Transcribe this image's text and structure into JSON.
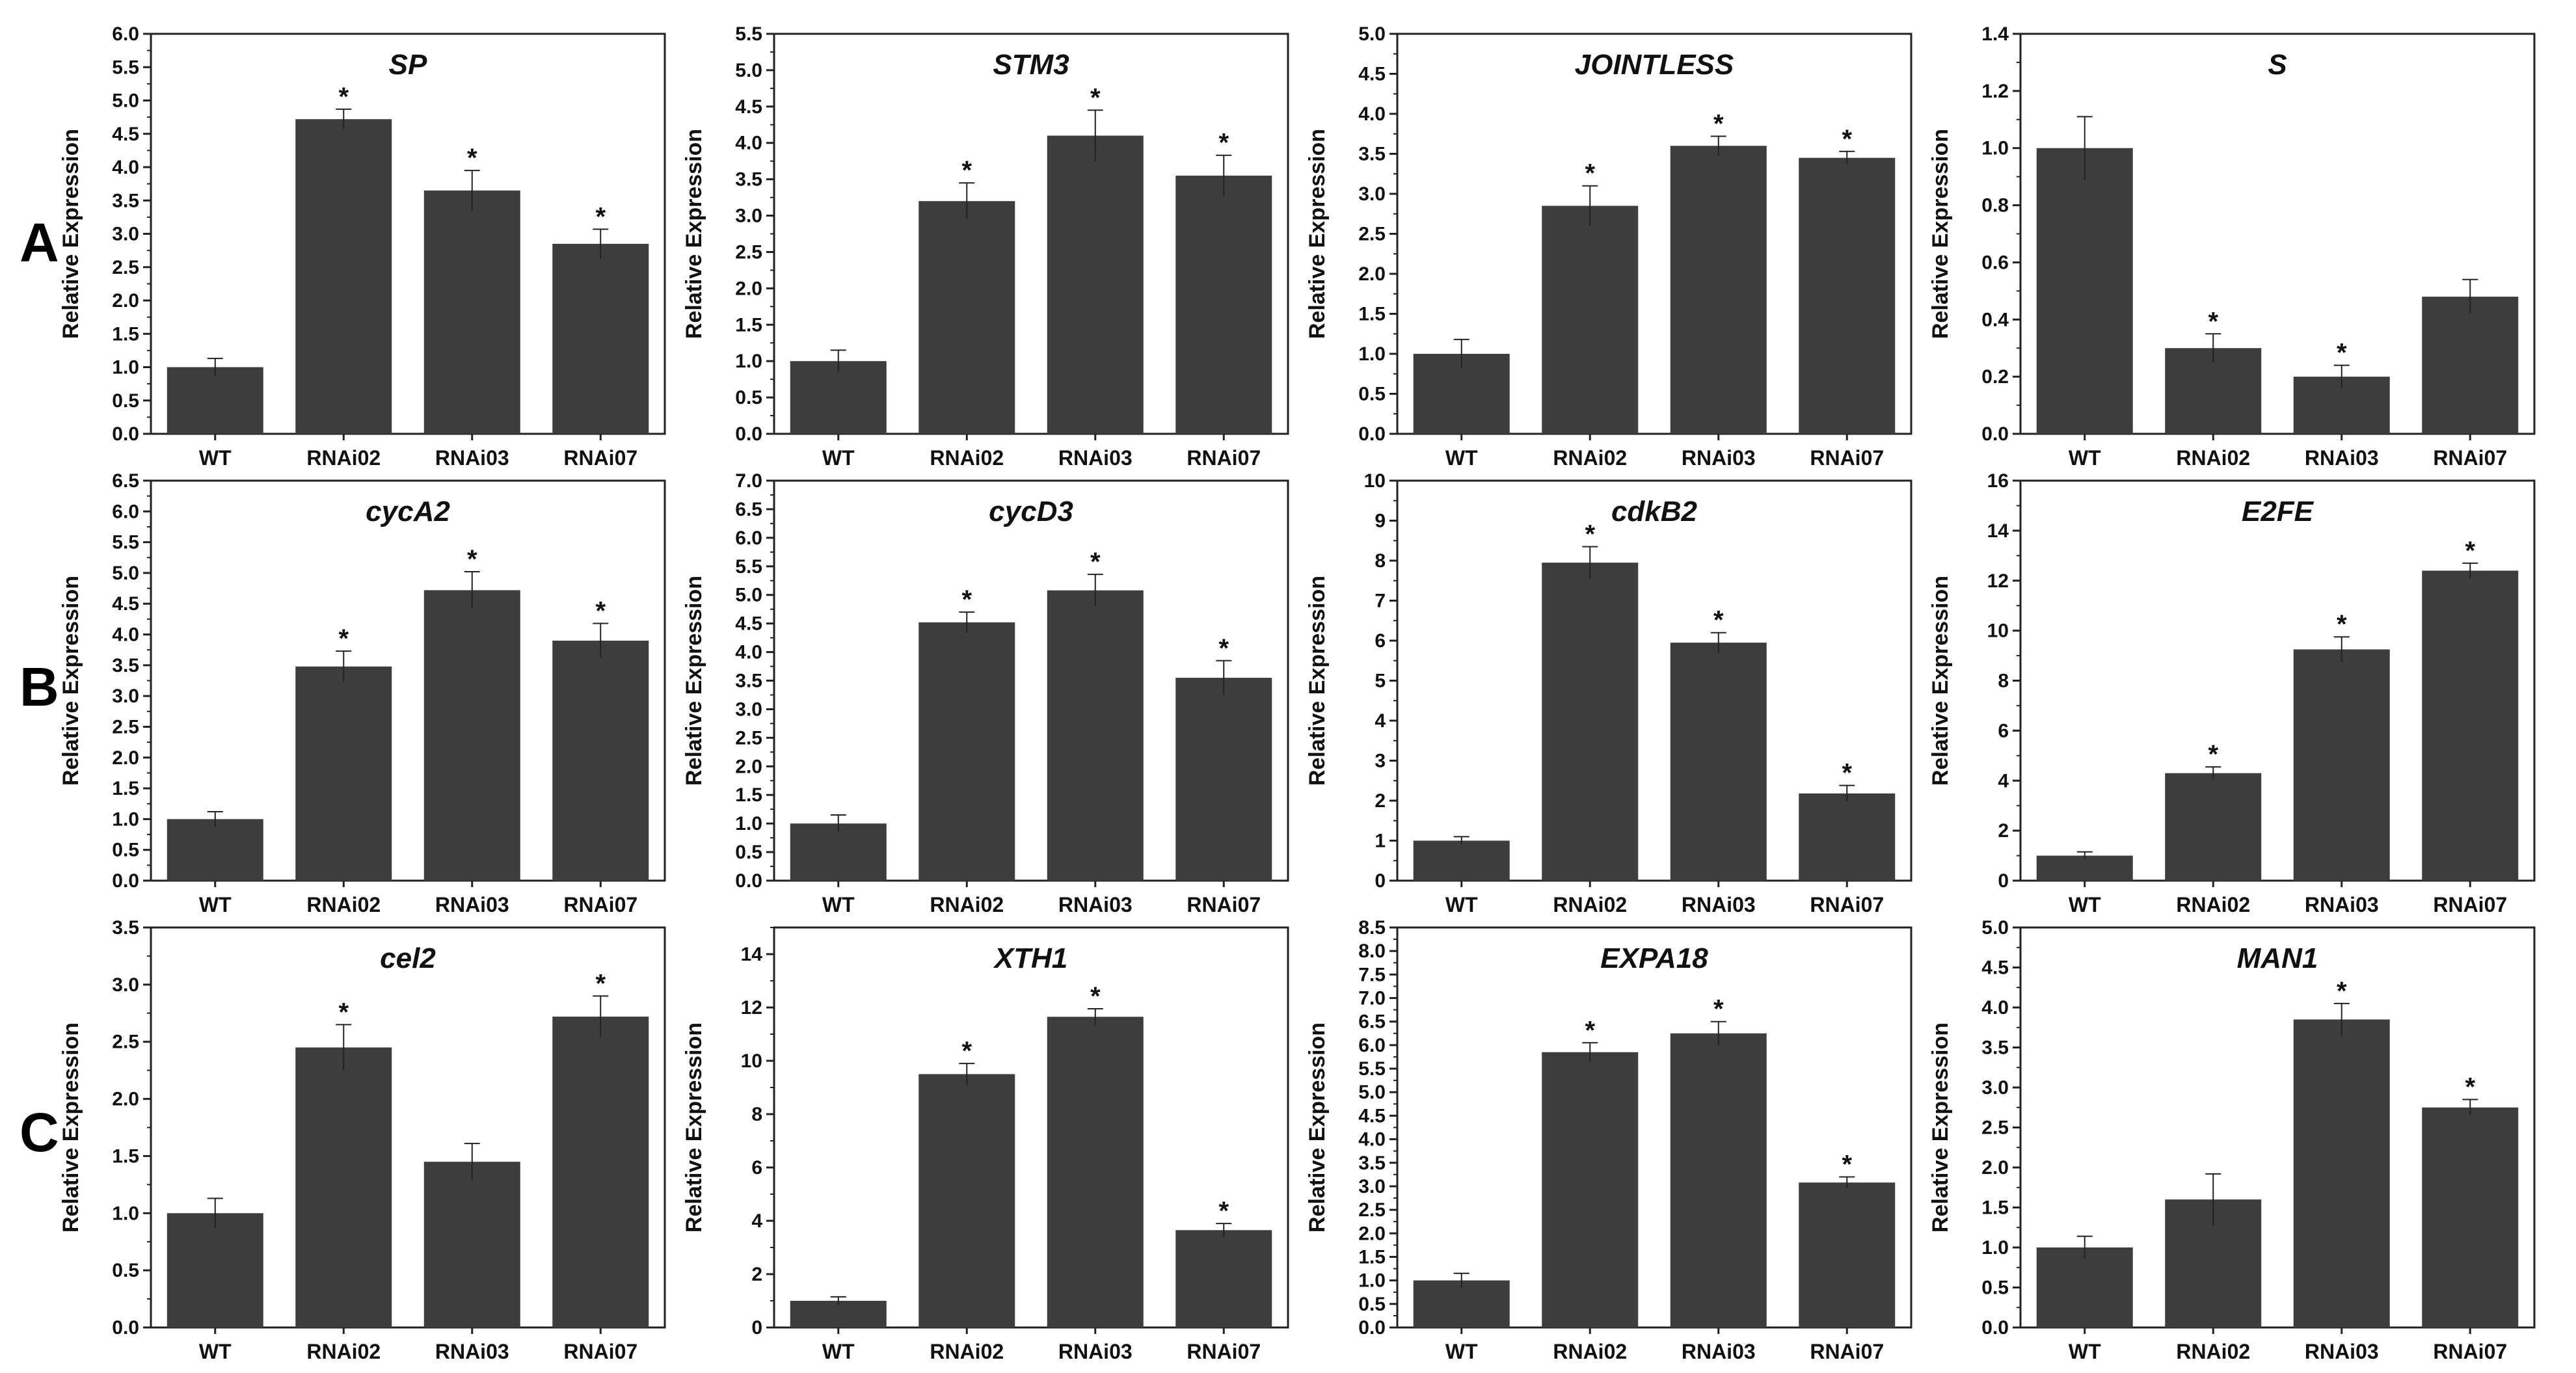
{
  "row_labels": [
    "A",
    "B",
    "C"
  ],
  "chart_data": [
    {
      "type": "bar",
      "title": "SP",
      "ylabel": "Relative Expression",
      "categories": [
        "WT",
        "RNAi02",
        "RNAi03",
        "RNAi07"
      ],
      "values": [
        1.0,
        4.72,
        3.65,
        2.85
      ],
      "errors": [
        0.13,
        0.15,
        0.3,
        0.22
      ],
      "significant": [
        false,
        true,
        true,
        true
      ],
      "ylim": [
        0,
        6
      ],
      "ytick_step": 0.5,
      "ytick_decimals": 1
    },
    {
      "type": "bar",
      "title": "STM3",
      "ylabel": "Relative Expression",
      "categories": [
        "WT",
        "RNAi02",
        "RNAi03",
        "RNAi07"
      ],
      "values": [
        1.0,
        3.2,
        4.1,
        3.55
      ],
      "errors": [
        0.15,
        0.25,
        0.35,
        0.28
      ],
      "significant": [
        false,
        true,
        true,
        true
      ],
      "ylim": [
        0,
        5.5
      ],
      "ytick_step": 0.5,
      "ytick_decimals": 1
    },
    {
      "type": "bar",
      "title": "JOINTLESS",
      "ylabel": "Relative Expression",
      "categories": [
        "WT",
        "RNAi02",
        "RNAi03",
        "RNAi07"
      ],
      "values": [
        1.0,
        2.85,
        3.6,
        3.45
      ],
      "errors": [
        0.18,
        0.25,
        0.12,
        0.08
      ],
      "significant": [
        false,
        true,
        true,
        true
      ],
      "ylim": [
        0,
        5
      ],
      "ytick_step": 0.5,
      "ytick_decimals": 1
    },
    {
      "type": "bar",
      "title": "S",
      "ylabel": "Relative Expression",
      "categories": [
        "WT",
        "RNAi02",
        "RNAi03",
        "RNAi07"
      ],
      "values": [
        1.0,
        0.3,
        0.2,
        0.48
      ],
      "errors": [
        0.11,
        0.05,
        0.04,
        0.06
      ],
      "significant": [
        false,
        true,
        true,
        false
      ],
      "ylim": [
        0,
        1.4
      ],
      "ytick_step": 0.2,
      "ytick_decimals": 1
    },
    {
      "type": "bar",
      "title": "cycA2",
      "ylabel": "Relative Expression",
      "categories": [
        "WT",
        "RNAi02",
        "RNAi03",
        "RNAi07"
      ],
      "values": [
        1.0,
        3.48,
        4.72,
        3.9
      ],
      "errors": [
        0.12,
        0.25,
        0.3,
        0.28
      ],
      "significant": [
        false,
        true,
        true,
        true
      ],
      "ylim": [
        0,
        6.5
      ],
      "ytick_step": 0.5,
      "ytick_decimals": 1
    },
    {
      "type": "bar",
      "title": "cycD3",
      "ylabel": "Relative Expression",
      "categories": [
        "WT",
        "RNAi02",
        "RNAi03",
        "RNAi07"
      ],
      "values": [
        1.0,
        4.52,
        5.08,
        3.55
      ],
      "errors": [
        0.15,
        0.18,
        0.28,
        0.3
      ],
      "significant": [
        false,
        true,
        true,
        true
      ],
      "ylim": [
        0,
        7
      ],
      "ytick_step": 0.5,
      "ytick_decimals": 1
    },
    {
      "type": "bar",
      "title": "cdkB2",
      "ylabel": "Relative Expression",
      "categories": [
        "WT",
        "RNAi02",
        "RNAi03",
        "RNAi07"
      ],
      "values": [
        1.0,
        7.95,
        5.95,
        2.18
      ],
      "errors": [
        0.1,
        0.4,
        0.25,
        0.2
      ],
      "significant": [
        false,
        true,
        true,
        true
      ],
      "ylim": [
        0,
        10
      ],
      "ytick_step": 1,
      "ytick_decimals": 0
    },
    {
      "type": "bar",
      "title": "E2FE",
      "ylabel": "Relative Expression",
      "categories": [
        "WT",
        "RNAi02",
        "RNAi03",
        "RNAi07"
      ],
      "values": [
        1.0,
        4.3,
        9.25,
        12.4
      ],
      "errors": [
        0.15,
        0.25,
        0.5,
        0.3
      ],
      "significant": [
        false,
        true,
        true,
        true
      ],
      "ylim": [
        0,
        16
      ],
      "ytick_step": 2,
      "ytick_decimals": 0
    },
    {
      "type": "bar",
      "title": "cel2",
      "ylabel": "Relative Expression",
      "categories": [
        "WT",
        "RNAi02",
        "RNAi03",
        "RNAi07"
      ],
      "values": [
        1.0,
        2.45,
        1.45,
        2.72
      ],
      "errors": [
        0.13,
        0.2,
        0.16,
        0.18
      ],
      "significant": [
        false,
        true,
        false,
        true
      ],
      "ylim": [
        0,
        3.5
      ],
      "ytick_step": 0.5,
      "ytick_decimals": 1
    },
    {
      "type": "bar",
      "title": "XTH1",
      "ylabel": "Relative Expression",
      "categories": [
        "WT",
        "RNAi02",
        "RNAi03",
        "RNAi07"
      ],
      "values": [
        1.0,
        9.5,
        11.65,
        3.65
      ],
      "errors": [
        0.15,
        0.4,
        0.3,
        0.25
      ],
      "significant": [
        false,
        true,
        true,
        true
      ],
      "ylim": [
        0,
        15
      ],
      "ytick_step": 2,
      "ytick_decimals": 0
    },
    {
      "type": "bar",
      "title": "EXPA18",
      "ylabel": "Relative Expression",
      "categories": [
        "WT",
        "RNAi02",
        "RNAi03",
        "RNAi07"
      ],
      "values": [
        1.0,
        5.85,
        6.25,
        3.08
      ],
      "errors": [
        0.15,
        0.2,
        0.25,
        0.12
      ],
      "significant": [
        false,
        true,
        true,
        true
      ],
      "ylim": [
        0,
        8.5
      ],
      "ytick_step": 0.5,
      "ytick_decimals": 1
    },
    {
      "type": "bar",
      "title": "MAN1",
      "ylabel": "Relative Expression",
      "categories": [
        "WT",
        "RNAi02",
        "RNAi03",
        "RNAi07"
      ],
      "values": [
        1.0,
        1.6,
        3.85,
        2.75
      ],
      "errors": [
        0.14,
        0.32,
        0.2,
        0.1
      ],
      "significant": [
        false,
        false,
        true,
        true
      ],
      "ylim": [
        0,
        5
      ],
      "ytick_step": 0.5,
      "ytick_decimals": 1
    }
  ],
  "significance_marker": "*",
  "colors": {
    "bar": "#3d3d3d",
    "axis": "#222222",
    "text": "#111111",
    "background": "#ffffff"
  }
}
